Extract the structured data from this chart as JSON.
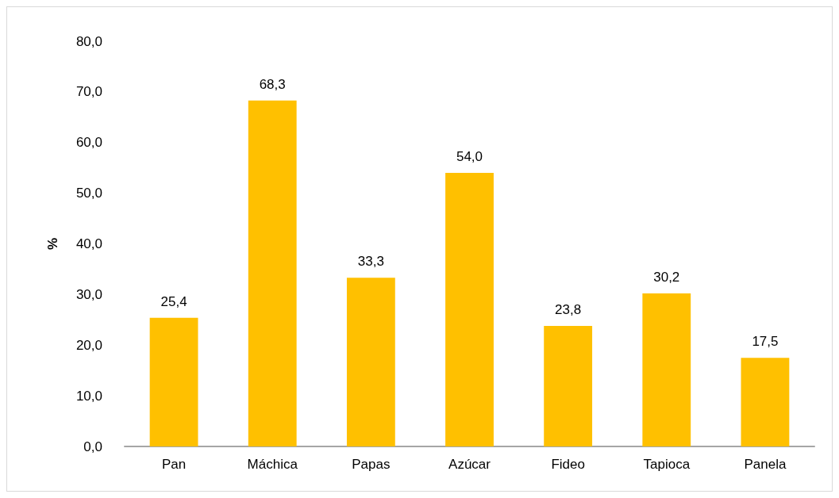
{
  "chart_data": {
    "type": "bar",
    "ylabel": "%",
    "categories": [
      "Pan",
      "Máchica",
      "Papas",
      "Azúcar",
      "Fideo",
      "Tapioca",
      "Panela"
    ],
    "values": [
      25.4,
      68.3,
      33.3,
      54.0,
      23.8,
      30.2,
      17.5
    ],
    "value_labels": [
      "25,4",
      "68,3",
      "33,3",
      "54,0",
      "23,8",
      "30,2",
      "17,5"
    ],
    "color": "#ffc000",
    "ylim": [
      0,
      80
    ],
    "yticks": [
      {
        "value": 0,
        "label": "0,0"
      },
      {
        "value": 10,
        "label": "10,0"
      },
      {
        "value": 20,
        "label": "20,0"
      },
      {
        "value": 30,
        "label": "30,0"
      },
      {
        "value": 40,
        "label": "40,0"
      },
      {
        "value": 50,
        "label": "50,0"
      },
      {
        "value": 60,
        "label": "60,0"
      },
      {
        "value": 70,
        "label": "70,0"
      },
      {
        "value": 80,
        "label": "80,0"
      }
    ],
    "grid": false
  }
}
